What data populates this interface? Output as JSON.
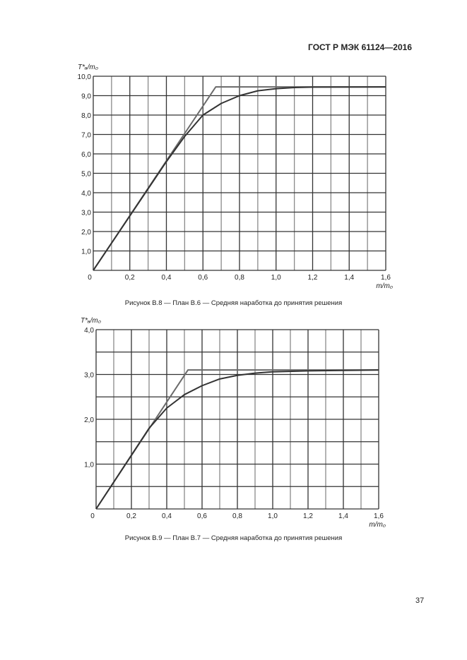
{
  "header": {
    "standard": "ГОСТ Р МЭК 61124—2016"
  },
  "page_number": "37",
  "chart_data": [
    {
      "type": "line",
      "caption": "Рисунок В.8 — План В.6 — Средняя наработка до принятия решения",
      "xlabel": "m/m₀",
      "ylabel": "T*ₐ/m₀",
      "xlim": [
        0,
        1.6
      ],
      "ylim": [
        0,
        10
      ],
      "xticks": [
        "0",
        "0,2",
        "0,4",
        "0,6",
        "0,8",
        "1,0",
        "1,2",
        "1,4",
        "1,6"
      ],
      "yticks": [
        "1,0",
        "2,0",
        "3,0",
        "4,0",
        "5,0",
        "6,0",
        "7,0",
        "8,0",
        "9,0",
        "10,0"
      ],
      "x_grid_step": 0.1,
      "y_grid_step": 1.0,
      "grid": true,
      "series": [
        {
          "color": "#6a6a6a",
          "x": [
            0,
            0.67,
            1.6
          ],
          "y": [
            0,
            9.45,
            9.45
          ]
        },
        {
          "color": "#333333",
          "x": [
            0,
            0.1,
            0.2,
            0.3,
            0.4,
            0.5,
            0.6,
            0.7,
            0.8,
            0.9,
            1.0,
            1.1,
            1.2,
            1.6
          ],
          "y": [
            0,
            1.4,
            2.8,
            4.2,
            5.6,
            6.9,
            8.0,
            8.6,
            9.0,
            9.25,
            9.36,
            9.42,
            9.44,
            9.45
          ]
        }
      ]
    },
    {
      "type": "line",
      "caption": "Рисунок В.9 — План В.7 — Средняя наработка до принятия решения",
      "xlabel": "m/m₀",
      "ylabel": "T*ₐ/m₀",
      "xlim": [
        0,
        1.6
      ],
      "ylim": [
        0,
        4
      ],
      "xticks": [
        "0",
        "0,2",
        "0,4",
        "0,6",
        "0,8",
        "1,0",
        "1,2",
        "1,4",
        "1,6"
      ],
      "yticks": [
        "1,0",
        "2,0",
        "3,0",
        "4,0"
      ],
      "x_grid_step": 0.1,
      "y_grid_step": 0.5,
      "grid": true,
      "series": [
        {
          "color": "#6a6a6a",
          "x": [
            0,
            0.52,
            1.6
          ],
          "y": [
            0,
            3.1,
            3.1
          ]
        },
        {
          "color": "#333333",
          "x": [
            0,
            0.1,
            0.2,
            0.3,
            0.4,
            0.5,
            0.6,
            0.7,
            0.8,
            0.9,
            1.0,
            1.2,
            1.4,
            1.6
          ],
          "y": [
            0,
            0.6,
            1.2,
            1.8,
            2.25,
            2.55,
            2.75,
            2.9,
            2.98,
            3.03,
            3.06,
            3.08,
            3.09,
            3.1
          ]
        }
      ]
    }
  ]
}
